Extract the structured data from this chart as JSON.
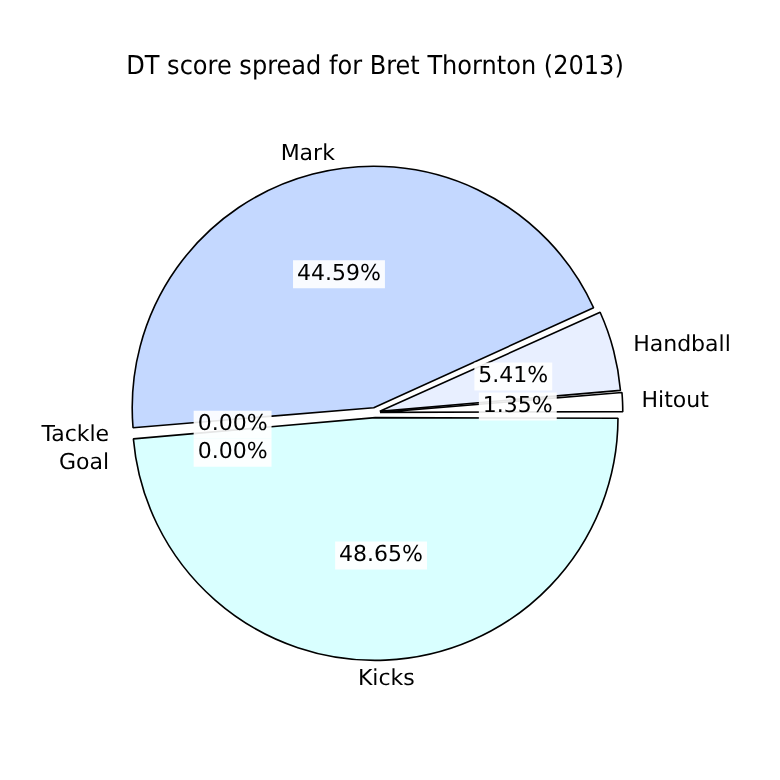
{
  "chart_data": {
    "type": "pie",
    "title": "DT score spread for Bret Thornton (2013)",
    "categories": [
      "Kicks",
      "Tackle",
      "Goal",
      "Mark",
      "Handball",
      "Hitout"
    ],
    "values": [
      48.65,
      0,
      0,
      44.59,
      5.41,
      1.35
    ],
    "colors": [
      "#d9ffff",
      "#ffe0e0",
      "#fff3cc",
      "#c4d8ff",
      "#e8efff",
      "#ffffff"
    ],
    "value_labels": [
      "48.65%",
      "0.00%",
      "0.00%",
      "44.59%",
      "5.41%",
      "1.35%"
    ],
    "legend": false
  }
}
